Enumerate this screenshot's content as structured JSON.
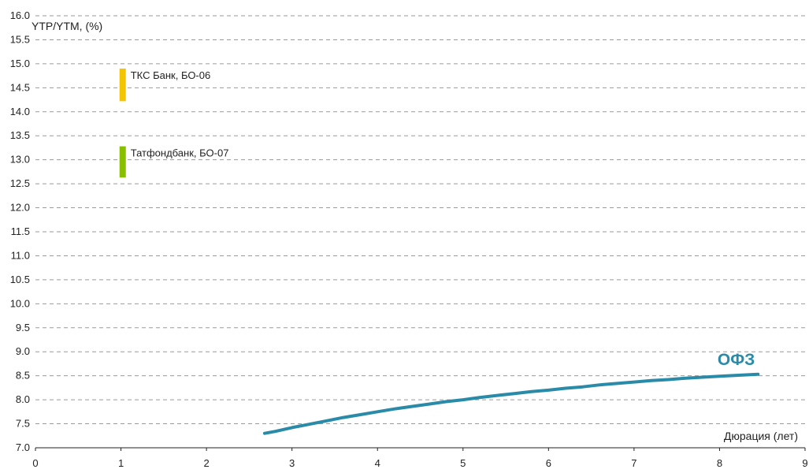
{
  "chart_data": {
    "type": "line",
    "title": "",
    "ylabel": "YTP/YTM, (%)",
    "xlabel": "Дюрация (лет)",
    "xlim": [
      0,
      9
    ],
    "ylim": [
      7.0,
      16.0
    ],
    "x_ticks": [
      "0",
      "1",
      "2",
      "3",
      "4",
      "5",
      "6",
      "7",
      "8",
      "9"
    ],
    "y_ticks": [
      "7.0",
      "7.5",
      "8.0",
      "8.5",
      "9.0",
      "9.5",
      "10.0",
      "10.5",
      "11.0",
      "11.5",
      "12.0",
      "12.5",
      "13.0",
      "13.5",
      "14.0",
      "14.5",
      "15.0",
      "15.5",
      "16.0"
    ],
    "grid": true,
    "series": [
      {
        "name": "ОФЗ",
        "color": "#2a8ba8",
        "x": [
          2.68,
          2.8,
          3.0,
          3.2,
          3.4,
          3.6,
          3.8,
          4.0,
          4.2,
          4.4,
          4.6,
          4.8,
          5.0,
          5.2,
          5.4,
          5.6,
          5.8,
          6.0,
          6.2,
          6.4,
          6.6,
          6.8,
          7.0,
          7.2,
          7.4,
          7.6,
          7.8,
          8.0,
          8.2,
          8.45
        ],
        "y": [
          7.3,
          7.34,
          7.42,
          7.49,
          7.56,
          7.63,
          7.69,
          7.75,
          7.81,
          7.86,
          7.91,
          7.96,
          8.0,
          8.05,
          8.09,
          8.13,
          8.17,
          8.2,
          8.24,
          8.27,
          8.31,
          8.34,
          8.37,
          8.4,
          8.42,
          8.45,
          8.47,
          8.49,
          8.51,
          8.53
        ]
      }
    ],
    "bonds": [
      {
        "name": "ТКС Банк, БО-06",
        "color": "#f5c400",
        "x": 1.02,
        "y_low": 14.22,
        "y_high": 14.9
      },
      {
        "name": "Татфондбанк, БО-07",
        "color": "#88c000",
        "x": 1.02,
        "y_low": 12.63,
        "y_high": 13.28
      }
    ]
  }
}
